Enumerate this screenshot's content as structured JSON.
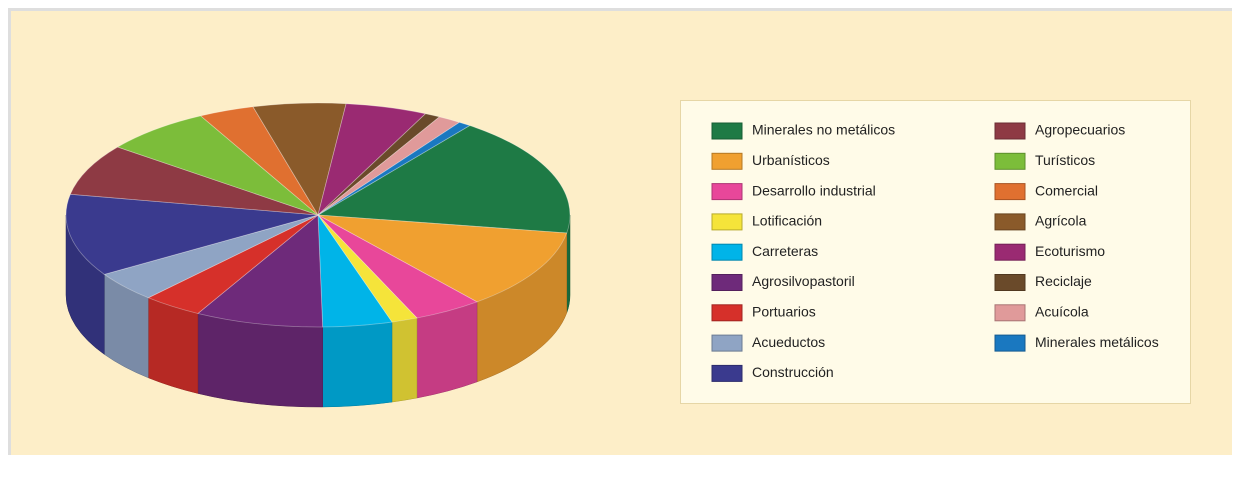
{
  "chart_data": {
    "type": "pie3d",
    "categories": [
      "Minerales no metálicos",
      "Urbanísticos",
      "Desarrollo industrial",
      "Lotificación",
      "Carreteras",
      "Agrosilvopastoril",
      "Portuarios",
      "Acueductos",
      "Construcción",
      "Agropecuarios",
      "Turísticos",
      "Comercial",
      "Agrícola",
      "Ecoturismo",
      "Reciclaje",
      "Acuícola",
      "Minerales metálicos"
    ],
    "values": [
      17.5,
      11.7,
      4.5,
      1.7,
      4.5,
      8.3,
      3.9,
      4.4,
      12,
      7.5,
      7,
      3.6,
      6,
      5.3,
      1,
      1.5,
      0.8
    ],
    "colors": [
      "#1e7a45",
      "#f0a030",
      "#e8479a",
      "#f5e43a",
      "#00b4e8",
      "#6e2a7a",
      "#d6302a",
      "#8fa4c4",
      "#3a3a8e",
      "#8e3a44",
      "#7cbd3a",
      "#e07030",
      "#8a5a2a",
      "#9a2a72",
      "#6a4a2a",
      "#e09a9a",
      "#1a78c0"
    ],
    "legend": "right"
  }
}
